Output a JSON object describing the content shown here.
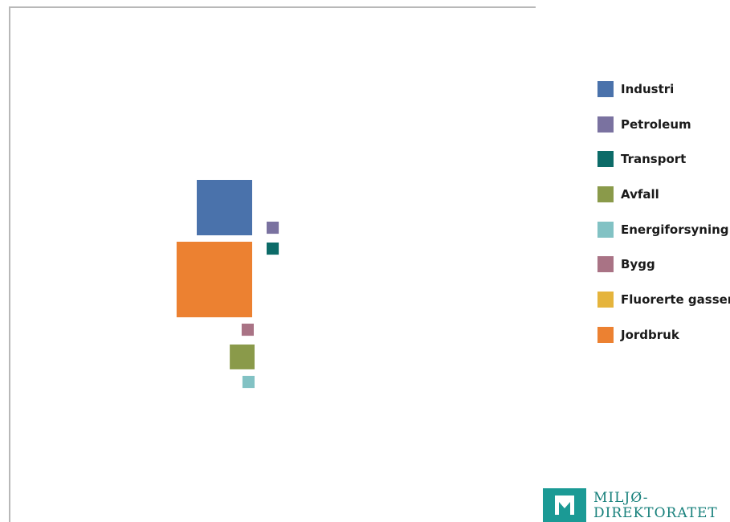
{
  "chart_data": {
    "type": "proportional-area",
    "title": "",
    "legend_position": "right",
    "series": [
      {
        "name": "Industri",
        "color": "#4a72ab",
        "value": 100
      },
      {
        "name": "Petroleum",
        "color": "#7a72a0",
        "value": 4.8
      },
      {
        "name": "Transport",
        "color": "#0c6b68",
        "value": 4.8
      },
      {
        "name": "Avfall",
        "color": "#8a9a4a",
        "value": 20
      },
      {
        "name": "Energiforsyning",
        "color": "#82c2c4",
        "value": 4.8
      },
      {
        "name": "Bygg",
        "color": "#a97385",
        "value": 4.8
      },
      {
        "name": "Fluorerte gasser",
        "color": "#e5b43c",
        "value": 0
      },
      {
        "name": "Jordbruk",
        "color": "#ec8131",
        "value": 186
      }
    ]
  },
  "logo": {
    "text": "MILJØ-\nDIREKTORATET"
  }
}
